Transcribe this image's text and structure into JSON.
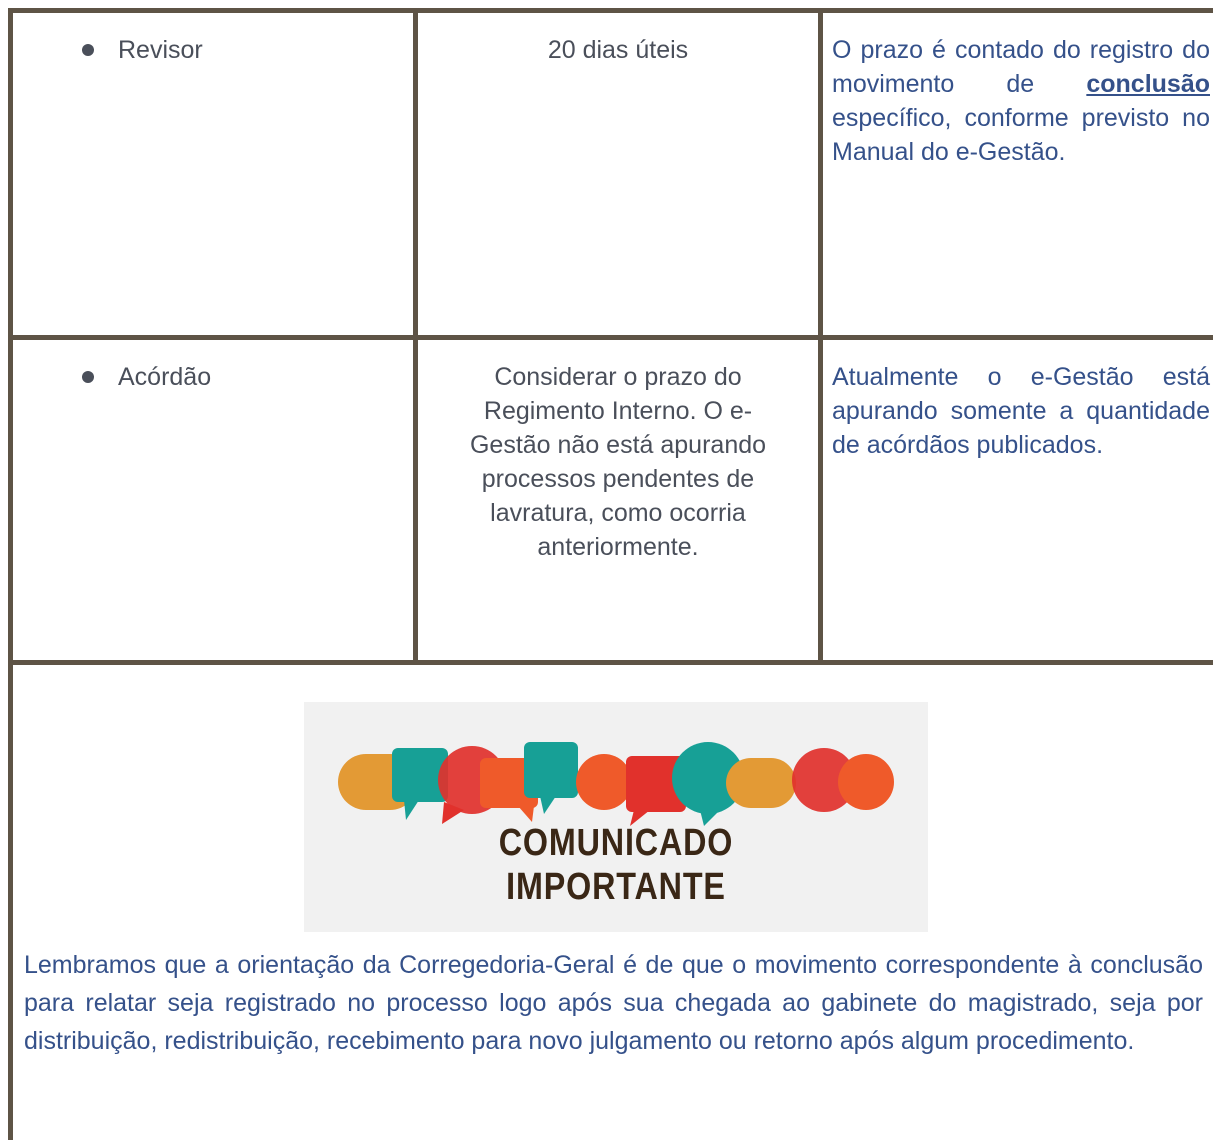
{
  "table": {
    "rows": [
      [
        "Revisor",
        "20 dias úteis",
        {
          "before": "O prazo é contado do registro do movimento de",
          "emphasis": "conclusão",
          "after": "específico, conforme previsto no Manual do e-Gestão."
        }
      ],
      [
        "Acórdão",
        "Considerar o prazo do Regimento Interno. O e-Gestão não está apurando processos pendentes de lavratura, como ocorria anteriormente.",
        {
          "before": "Atualmente o e-Gestão está apurando somente a quantidade de acórdãos publicados."
        }
      ]
    ]
  },
  "banner": {
    "line1": "COMUNICADO",
    "line2": "IMPORTANTE"
  },
  "notice": {
    "text": "Lembramos que a orientação da Corregedoria-Geral é de que o movimento correspondente à conclusão para relatar seja registrado no processo logo após sua chegada ao gabinete do magistrado, seja por distribuição, redistribuição, recebimento para novo julgamento ou retorno após algum procedimento."
  }
}
